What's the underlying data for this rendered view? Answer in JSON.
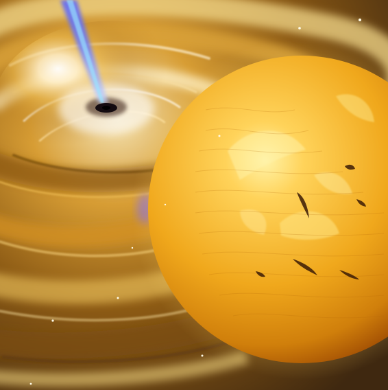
{
  "image": {
    "subject": "",
    "colors": {
      "background": "#ffffff",
      "disk_dark": "#4a3310",
      "disk_mid": "#b9781a",
      "disk_light": "#f0d58a",
      "disk_highlight": "#fff4d6",
      "jet": "#5a64ff",
      "jet_core": "#9ae7ff",
      "star_core": "#ffd35a",
      "star_mid": "#f0a81c",
      "star_edge": "#b55f05",
      "sunspot": "#3b1b06"
    },
    "elements": [
      "black-hole",
      "accretion-disk",
      "relativistic-jet",
      "companion-star",
      "sunspots",
      "background-stars"
    ]
  }
}
